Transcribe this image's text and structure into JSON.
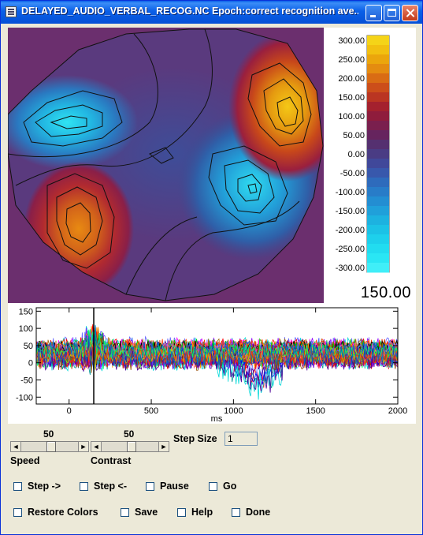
{
  "window": {
    "title": "DELAYED_AUDIO_VERBAL_RECOG.NC Epoch:correct recognition ave..."
  },
  "topomap": {
    "colorbar_ticks": [
      "300.00",
      "275.00",
      "250.00",
      "225.00",
      "200.00",
      "175.00",
      "150.00",
      "125.00",
      "100.00",
      "75.00",
      "50.00",
      "25.00",
      "0.00",
      "-25.00",
      "-50.00",
      "-75.00",
      "-100.00",
      "-125.00",
      "-150.00",
      "-175.00",
      "-200.00",
      "-225.00",
      "-250.00",
      "-275.00",
      "-300.00"
    ],
    "colorbar_labels": [
      "300.00",
      "250.00",
      "200.00",
      "150.00",
      "100.00",
      "50.00",
      "0.00",
      "-50.00",
      "-100.00",
      "-150.00",
      "-200.00",
      "-250.00",
      "-300.00"
    ],
    "current_value": "150.00",
    "colors": {
      "background": "#6b2f6e",
      "positive": "#f2c515",
      "negative": "#2ee0f0"
    }
  },
  "chart_data": {
    "type": "line",
    "title": "",
    "xlabel": "ms",
    "ylabel": "",
    "xlim": [
      -200,
      2000
    ],
    "ylim": [
      -120,
      160
    ],
    "x_ticks": [
      "0",
      "500",
      "1000",
      "1500",
      "2000"
    ],
    "y_ticks": [
      "150",
      "100",
      "50",
      "0",
      "-50",
      "-100"
    ],
    "marker_x": 150,
    "series_count": 60,
    "note_series": "dense overlaid multicolor channel traces between about -100 and 150"
  },
  "controls": {
    "speed": {
      "label": "Speed",
      "value": "50"
    },
    "contrast": {
      "label": "Contrast",
      "value": "50"
    },
    "step_size": {
      "label": "Step Size",
      "value": "1"
    },
    "checkboxes": {
      "step_forward": "Step ->",
      "step_back": "Step <-",
      "pause": "Pause",
      "go": "Go",
      "restore_colors": "Restore Colors",
      "save": "Save",
      "help": "Help",
      "done": "Done"
    }
  }
}
